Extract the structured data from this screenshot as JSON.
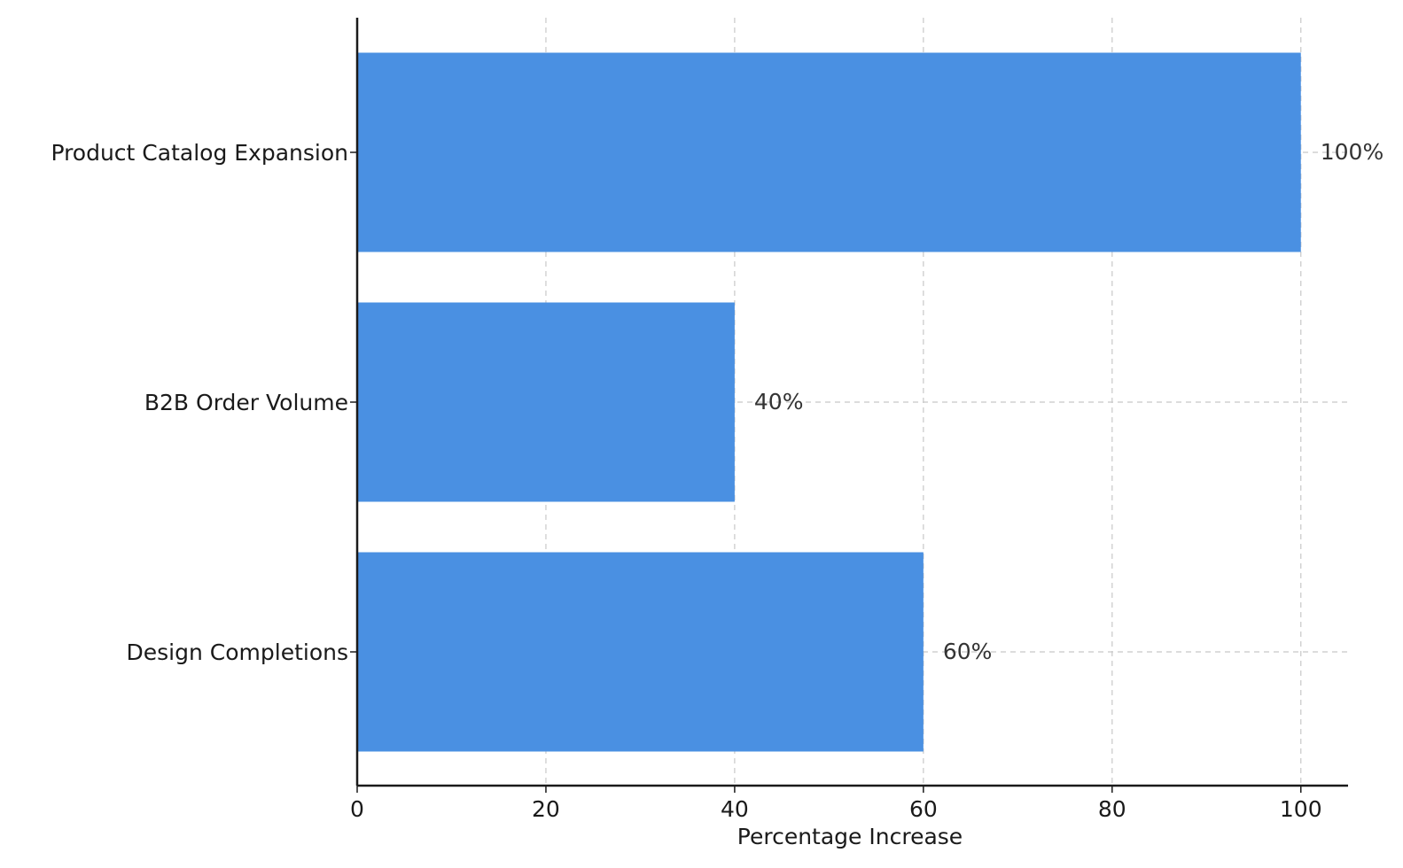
{
  "chart_data": {
    "type": "bar",
    "orientation": "horizontal",
    "categories": [
      "Product Catalog Expansion",
      "B2B Order Volume",
      "Design Completions"
    ],
    "values": [
      100,
      40,
      60
    ],
    "value_labels": [
      "100%",
      "40%",
      "60%"
    ],
    "title": "",
    "xlabel": "Percentage Increase",
    "ylabel": "",
    "xlim": [
      0,
      105
    ],
    "xticks": [
      0,
      20,
      40,
      60,
      80,
      100
    ],
    "grid": true,
    "grid_style": "dashed",
    "bar_color": "#4a90e2",
    "grid_color": "#c8c8c8",
    "axis_color": "#1a1a1a"
  }
}
